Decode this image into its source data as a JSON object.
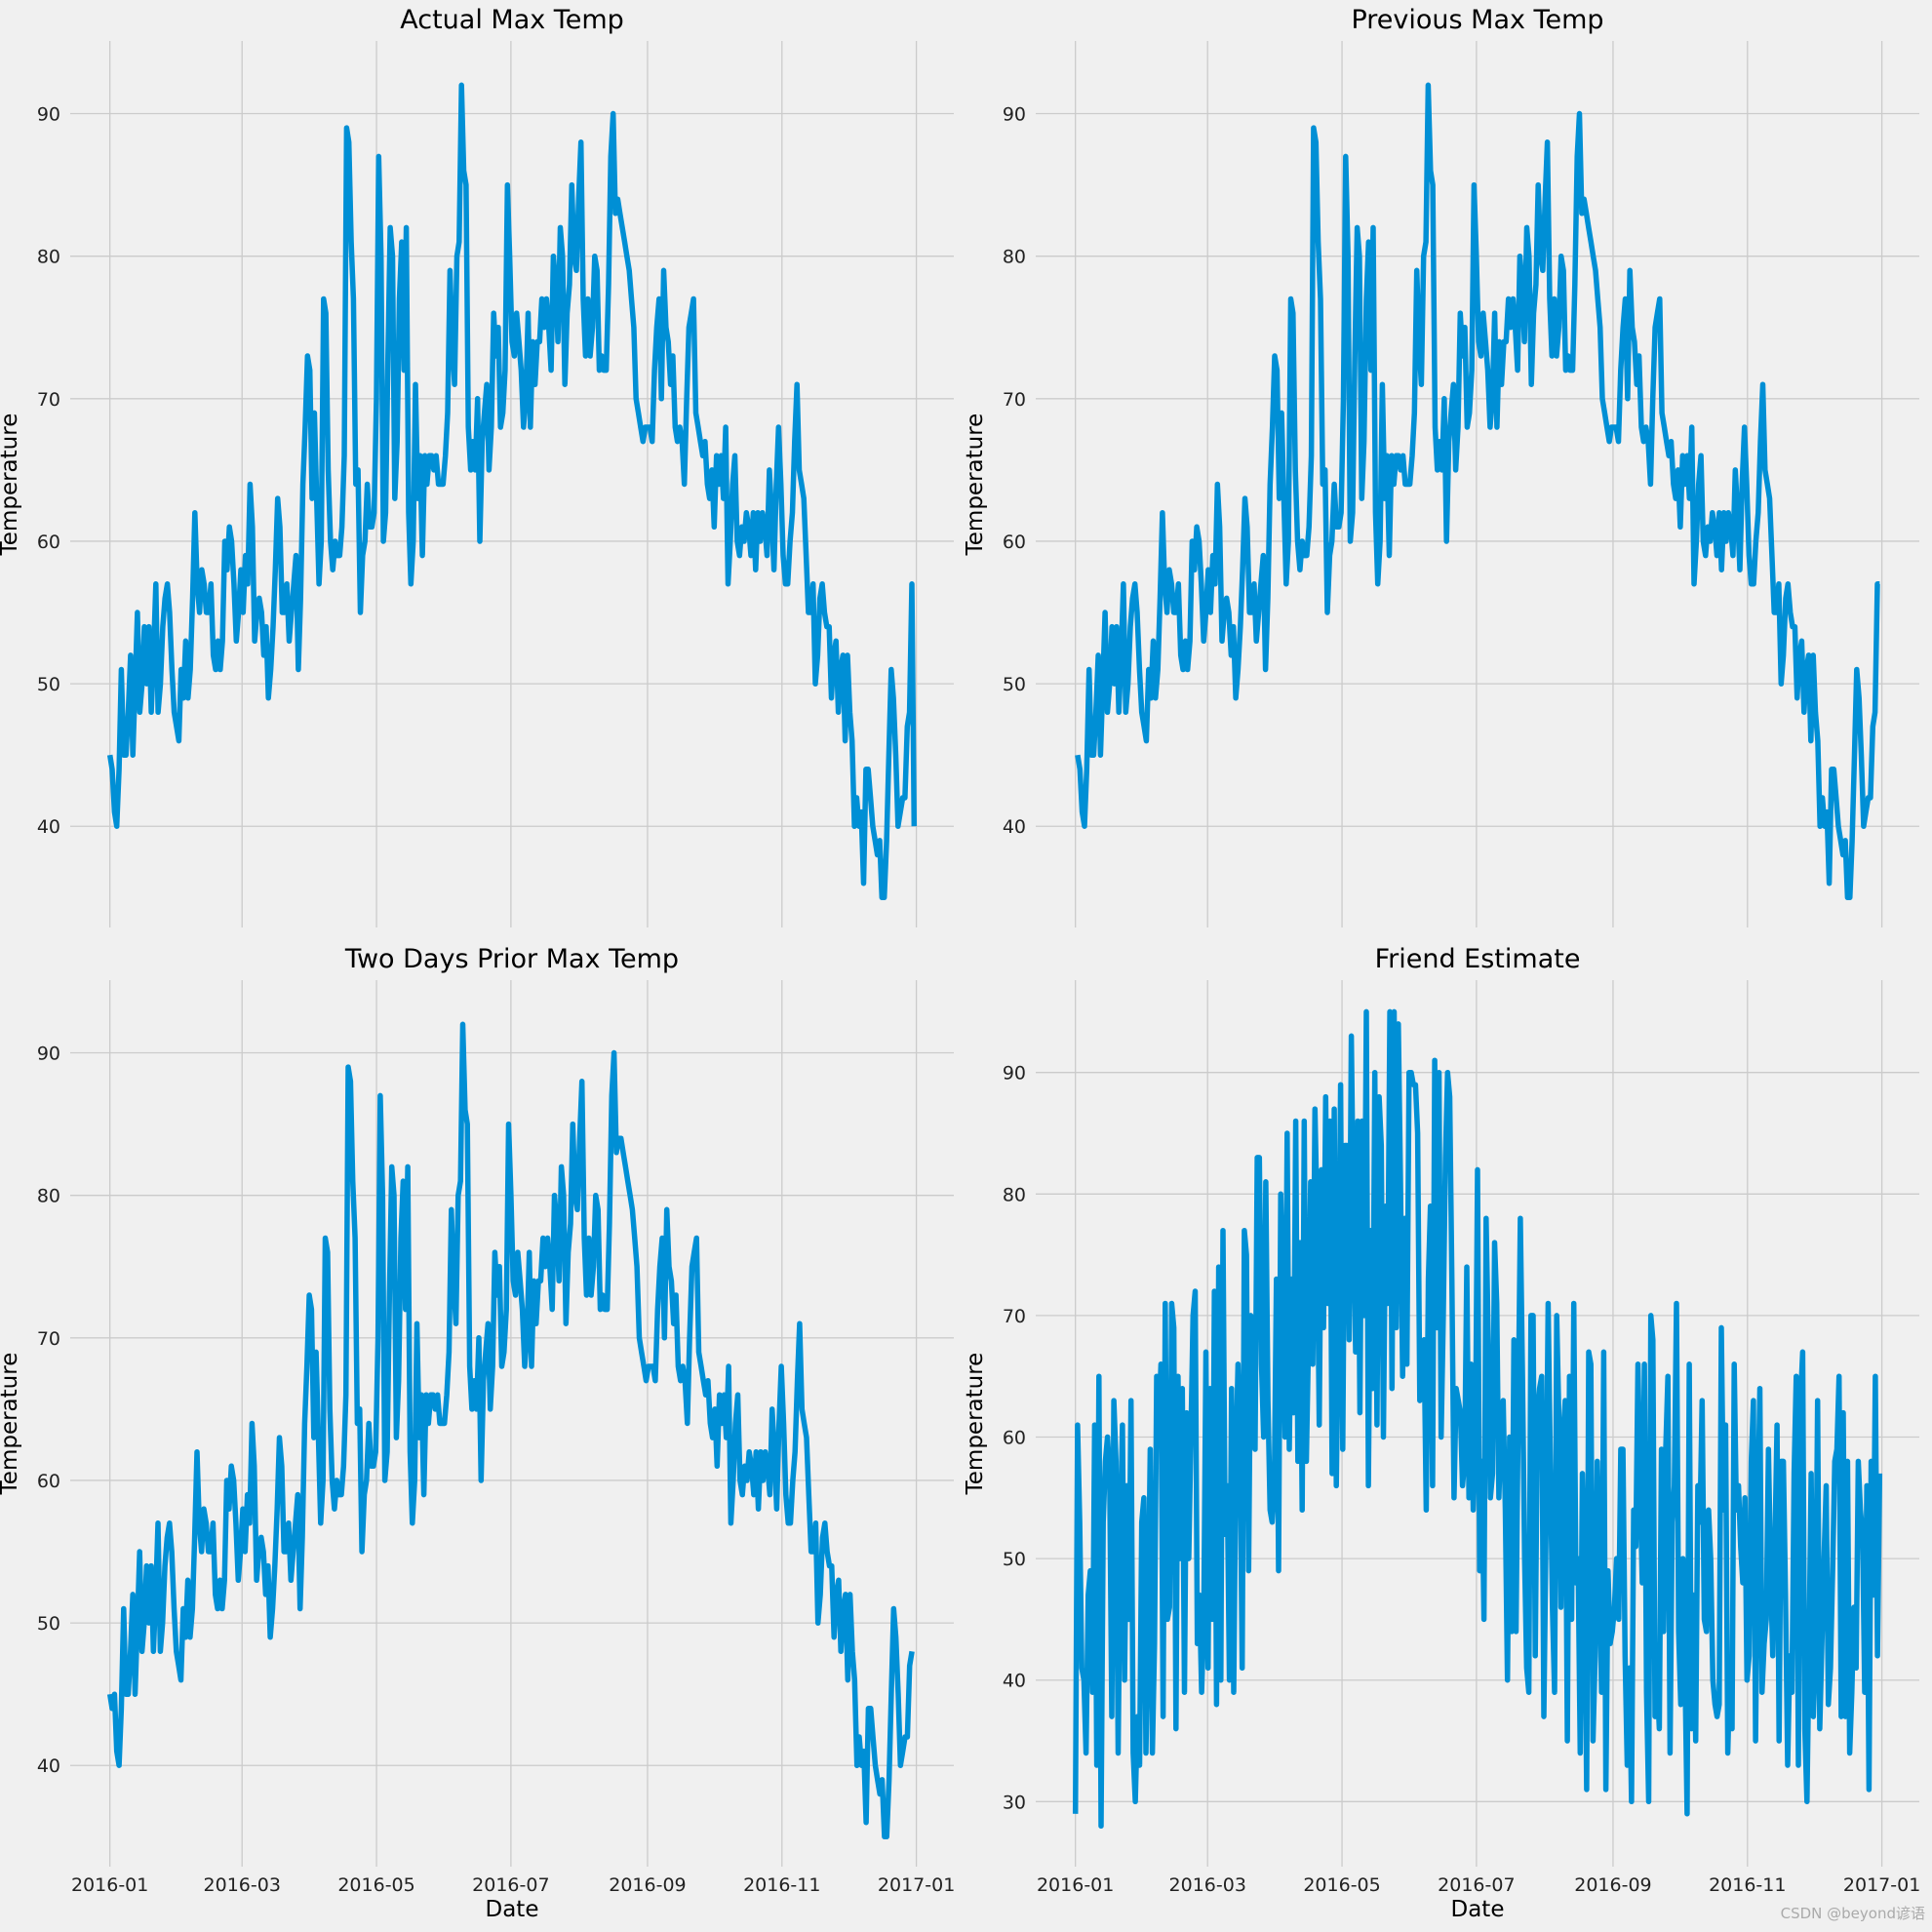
{
  "figure": {
    "background": "#f0f0f0",
    "grid_color": "#cbcbcb",
    "line_color": "#008fd5",
    "watermark": "CSDN @beyond谚语"
  },
  "chart_data": [
    {
      "type": "line",
      "title": "Actual Max Temp",
      "xlabel": "",
      "ylabel": "Temperature",
      "x_start": "2016-01-01",
      "x_end": "2016-12-31",
      "x_ticks": [
        "2016-01",
        "2016-03",
        "2016-05",
        "2016-07",
        "2016-09",
        "2016-11",
        "2017-01"
      ],
      "x_tick_labels_visible": false,
      "yticks": [
        40,
        50,
        60,
        70,
        80,
        90
      ],
      "ylim": [
        32.9,
        95.1
      ],
      "grid": true,
      "values": [
        45,
        44,
        41,
        40,
        44,
        51,
        45,
        45,
        48,
        52,
        45,
        50,
        55,
        48,
        50,
        54,
        50,
        54,
        48,
        52,
        57,
        48,
        50,
        54,
        56,
        57,
        55,
        51,
        48,
        47,
        46,
        51,
        49,
        53,
        49,
        51,
        56,
        62,
        57,
        55,
        58,
        57,
        55,
        55,
        57,
        52,
        51,
        53,
        51,
        53,
        60,
        58,
        61,
        60,
        57,
        53,
        55,
        58,
        55,
        59,
        57,
        64,
        61,
        53,
        55,
        56,
        55,
        52,
        54,
        49,
        51,
        54,
        58,
        63,
        61,
        55,
        55,
        57,
        53,
        55,
        57,
        59,
        51,
        56,
        64,
        68,
        73,
        72,
        63,
        69,
        63,
        57,
        60,
        77,
        76,
        65,
        60,
        58,
        60,
        59,
        59,
        61,
        66,
        89,
        88,
        81,
        77,
        64,
        65,
        55,
        59,
        60,
        64,
        61,
        61,
        62,
        70,
        87,
        80,
        60,
        62,
        73,
        82,
        80,
        63,
        67,
        77,
        81,
        72,
        82,
        62,
        57,
        60,
        71,
        63,
        66,
        59,
        66,
        64,
        66,
        66,
        65,
        66,
        64,
        64,
        64,
        66,
        69,
        79,
        74,
        71,
        80,
        81,
        92,
        86,
        85,
        68,
        65,
        67,
        65,
        70,
        60,
        67,
        69,
        71,
        65,
        68,
        76,
        73,
        75,
        68,
        69,
        72,
        85,
        80,
        74,
        73,
        76,
        74,
        72,
        68,
        70,
        76,
        68,
        74,
        71,
        74,
        74,
        77,
        75,
        77,
        75,
        72,
        80,
        78,
        74,
        82,
        80,
        71,
        76,
        78,
        85,
        80,
        79,
        84,
        88,
        77,
        73,
        77,
        73,
        75,
        80,
        79,
        72,
        73,
        72,
        72,
        78,
        87,
        90,
        83,
        84,
        83,
        82,
        81,
        80,
        79,
        77,
        75,
        70,
        69,
        68,
        67,
        68,
        68,
        68,
        67,
        72,
        75,
        77,
        70,
        79,
        75,
        74,
        71,
        73,
        68,
        67,
        68,
        67,
        64,
        70,
        75,
        76,
        77,
        69,
        68,
        67,
        66,
        67,
        64,
        63,
        65,
        61,
        66,
        64,
        66,
        63,
        68,
        57,
        60,
        64,
        66,
        60,
        59,
        61,
        60,
        62,
        61,
        59,
        62,
        58,
        62,
        60,
        62,
        61,
        59,
        65,
        62,
        58,
        64,
        68,
        64,
        59,
        57,
        57,
        60,
        62,
        67,
        71,
        65,
        64,
        63,
        59,
        55,
        55,
        57,
        50,
        52,
        56,
        57,
        55,
        54,
        54,
        49,
        52,
        53,
        48,
        51,
        52,
        46,
        52,
        48,
        46,
        40,
        42,
        40,
        41,
        36,
        44,
        44,
        42,
        40,
        39,
        38,
        39,
        35,
        35,
        39,
        45,
        51,
        49,
        45,
        40,
        41,
        42,
        42,
        47,
        48,
        57,
        40
      ]
    },
    {
      "type": "line",
      "title": "Previous Max Temp",
      "xlabel": "",
      "ylabel": "Temperature",
      "x_start": "2016-01-02",
      "x_end": "2016-12-31",
      "x_ticks": [
        "2016-01",
        "2016-03",
        "2016-05",
        "2016-07",
        "2016-09",
        "2016-11",
        "2017-01"
      ],
      "x_tick_labels_visible": false,
      "yticks": [
        40,
        50,
        60,
        70,
        80,
        90
      ],
      "ylim": [
        32.9,
        95.1
      ],
      "grid": true,
      "values": [
        45,
        44,
        41,
        40,
        44,
        51,
        45,
        45,
        48,
        52,
        45,
        50,
        55,
        48,
        50,
        54,
        50,
        54,
        48,
        52,
        57,
        48,
        50,
        54,
        56,
        57,
        55,
        51,
        48,
        47,
        46,
        51,
        49,
        53,
        49,
        51,
        56,
        62,
        57,
        55,
        58,
        57,
        55,
        55,
        57,
        52,
        51,
        53,
        51,
        53,
        60,
        58,
        61,
        60,
        57,
        53,
        55,
        58,
        55,
        59,
        57,
        64,
        61,
        53,
        55,
        56,
        55,
        52,
        54,
        49,
        51,
        54,
        58,
        63,
        61,
        55,
        55,
        57,
        53,
        55,
        57,
        59,
        51,
        56,
        64,
        68,
        73,
        72,
        63,
        69,
        63,
        57,
        60,
        77,
        76,
        65,
        60,
        58,
        60,
        59,
        59,
        61,
        66,
        89,
        88,
        81,
        77,
        64,
        65,
        55,
        59,
        60,
        64,
        61,
        61,
        62,
        70,
        87,
        80,
        60,
        62,
        73,
        82,
        80,
        63,
        67,
        77,
        81,
        72,
        82,
        62,
        57,
        60,
        71,
        63,
        66,
        59,
        66,
        64,
        66,
        66,
        65,
        66,
        64,
        64,
        64,
        66,
        69,
        79,
        74,
        71,
        80,
        81,
        92,
        86,
        85,
        68,
        65,
        67,
        65,
        70,
        60,
        67,
        69,
        71,
        65,
        68,
        76,
        73,
        75,
        68,
        69,
        72,
        85,
        80,
        74,
        73,
        76,
        74,
        72,
        68,
        70,
        76,
        68,
        74,
        71,
        74,
        74,
        77,
        75,
        77,
        75,
        72,
        80,
        78,
        74,
        82,
        80,
        71,
        76,
        78,
        85,
        80,
        79,
        84,
        88,
        77,
        73,
        77,
        73,
        75,
        80,
        79,
        72,
        73,
        72,
        72,
        78,
        87,
        90,
        83,
        84,
        83,
        82,
        81,
        80,
        79,
        77,
        75,
        70,
        69,
        68,
        67,
        68,
        68,
        68,
        67,
        72,
        75,
        77,
        70,
        79,
        75,
        74,
        71,
        73,
        68,
        67,
        68,
        67,
        64,
        70,
        75,
        76,
        77,
        69,
        68,
        67,
        66,
        67,
        64,
        63,
        65,
        61,
        66,
        64,
        66,
        63,
        68,
        57,
        60,
        64,
        66,
        60,
        59,
        61,
        60,
        62,
        61,
        59,
        62,
        58,
        62,
        60,
        62,
        61,
        59,
        65,
        62,
        58,
        64,
        68,
        64,
        59,
        57,
        57,
        60,
        62,
        67,
        71,
        65,
        64,
        63,
        59,
        55,
        55,
        57,
        50,
        52,
        56,
        57,
        55,
        54,
        54,
        49,
        52,
        53,
        48,
        51,
        52,
        46,
        52,
        48,
        46,
        40,
        42,
        40,
        41,
        36,
        44,
        44,
        42,
        40,
        39,
        38,
        39,
        35,
        35,
        39,
        45,
        51,
        49,
        45,
        40,
        41,
        42,
        42,
        47,
        48,
        57,
        57
      ]
    },
    {
      "type": "line",
      "title": "Two Days Prior Max Temp",
      "xlabel": "Date",
      "ylabel": "Temperature",
      "x_start": "2016-01-01",
      "x_end": "2016-12-30",
      "x_ticks": [
        "2016-01",
        "2016-03",
        "2016-05",
        "2016-07",
        "2016-09",
        "2016-11",
        "2017-01"
      ],
      "x_tick_labels_visible": true,
      "yticks": [
        40,
        50,
        60,
        70,
        80,
        90
      ],
      "ylim": [
        32.9,
        95.1
      ],
      "grid": true,
      "values": [
        45,
        44,
        45,
        41,
        40,
        44,
        51,
        45,
        45,
        48,
        52,
        45,
        50,
        55,
        48,
        50,
        54,
        50,
        54,
        48,
        52,
        57,
        48,
        50,
        54,
        56,
        57,
        55,
        51,
        48,
        47,
        46,
        51,
        49,
        53,
        49,
        51,
        56,
        62,
        57,
        55,
        58,
        57,
        55,
        55,
        57,
        52,
        51,
        53,
        51,
        53,
        60,
        58,
        61,
        60,
        57,
        53,
        55,
        58,
        55,
        59,
        57,
        64,
        61,
        53,
        55,
        56,
        55,
        52,
        54,
        49,
        51,
        54,
        58,
        63,
        61,
        55,
        55,
        57,
        53,
        55,
        57,
        59,
        51,
        56,
        64,
        68,
        73,
        72,
        63,
        69,
        63,
        57,
        60,
        77,
        76,
        65,
        60,
        58,
        60,
        59,
        59,
        61,
        66,
        89,
        88,
        81,
        77,
        64,
        65,
        55,
        59,
        60,
        64,
        61,
        61,
        62,
        70,
        87,
        80,
        60,
        62,
        73,
        82,
        80,
        63,
        67,
        77,
        81,
        72,
        82,
        62,
        57,
        60,
        71,
        63,
        66,
        59,
        66,
        64,
        66,
        66,
        65,
        66,
        64,
        64,
        64,
        66,
        69,
        79,
        74,
        71,
        80,
        81,
        92,
        86,
        85,
        68,
        65,
        67,
        65,
        70,
        60,
        67,
        69,
        71,
        65,
        68,
        76,
        73,
        75,
        68,
        69,
        72,
        85,
        80,
        74,
        73,
        76,
        74,
        72,
        68,
        70,
        76,
        68,
        74,
        71,
        74,
        74,
        77,
        75,
        77,
        75,
        72,
        80,
        78,
        74,
        82,
        80,
        71,
        76,
        78,
        85,
        80,
        79,
        84,
        88,
        77,
        73,
        77,
        73,
        75,
        80,
        79,
        72,
        73,
        72,
        72,
        78,
        87,
        90,
        83,
        84,
        84,
        83,
        82,
        81,
        80,
        79,
        77,
        75,
        70,
        69,
        68,
        67,
        68,
        68,
        68,
        67,
        72,
        75,
        77,
        70,
        79,
        75,
        74,
        71,
        73,
        68,
        67,
        68,
        67,
        64,
        70,
        75,
        76,
        77,
        69,
        68,
        67,
        66,
        67,
        64,
        63,
        65,
        61,
        66,
        64,
        66,
        63,
        68,
        57,
        60,
        64,
        66,
        60,
        59,
        61,
        60,
        62,
        61,
        59,
        62,
        58,
        62,
        60,
        62,
        61,
        59,
        65,
        62,
        58,
        64,
        68,
        64,
        59,
        57,
        57,
        60,
        62,
        67,
        71,
        65,
        64,
        63,
        59,
        55,
        55,
        57,
        50,
        52,
        56,
        57,
        55,
        54,
        54,
        49,
        52,
        53,
        48,
        51,
        52,
        46,
        52,
        48,
        46,
        40,
        42,
        40,
        41,
        36,
        44,
        44,
        42,
        40,
        39,
        38,
        39,
        35,
        35,
        39,
        45,
        51,
        49,
        45,
        40,
        41,
        42,
        42,
        47,
        48
      ]
    },
    {
      "type": "line",
      "title": "Friend Estimate",
      "xlabel": "Date",
      "ylabel": "Temperature",
      "x_start": "2016-01-01",
      "x_end": "2016-12-31",
      "x_ticks": [
        "2016-01",
        "2016-03",
        "2016-05",
        "2016-07",
        "2016-09",
        "2016-11",
        "2017-01"
      ],
      "x_tick_labels_visible": true,
      "yticks": [
        30,
        40,
        50,
        60,
        70,
        80,
        90
      ],
      "ylim": [
        24.65,
        97.6
      ],
      "grid": true,
      "values": [
        29,
        61,
        53,
        41,
        40,
        34,
        47,
        49,
        39,
        61,
        33,
        65,
        28,
        53,
        58,
        60,
        57,
        37,
        63,
        58,
        34,
        52,
        61,
        40,
        56,
        45,
        63,
        34,
        30,
        37,
        33,
        53,
        55,
        34,
        45,
        59,
        34,
        43,
        65,
        61,
        66,
        37,
        71,
        45,
        46,
        71,
        69,
        36,
        65,
        50,
        64,
        39,
        62,
        50,
        60,
        70,
        72,
        43,
        47,
        39,
        45,
        67,
        41,
        64,
        45,
        72,
        38,
        74,
        40,
        77,
        52,
        56,
        40,
        64,
        39,
        58,
        66,
        59,
        41,
        77,
        75,
        49,
        70,
        60,
        59,
        83,
        83,
        66,
        60,
        81,
        63,
        54,
        53,
        56,
        73,
        49,
        80,
        72,
        60,
        85,
        59,
        73,
        62,
        86,
        58,
        76,
        54,
        86,
        58,
        68,
        81,
        66,
        87,
        78,
        61,
        82,
        69,
        88,
        71,
        86,
        57,
        87,
        56,
        70,
        89,
        59,
        84,
        84,
        68,
        93,
        78,
        67,
        86,
        62,
        86,
        70,
        95,
        56,
        77,
        64,
        90,
        61,
        88,
        84,
        60,
        79,
        71,
        95,
        64,
        95,
        69,
        94,
        81,
        65,
        78,
        66,
        90,
        90,
        89,
        89,
        85,
        63,
        65,
        68,
        54,
        73,
        79,
        56,
        91,
        69,
        90,
        60,
        70,
        83,
        90,
        88,
        73,
        55,
        64,
        63,
        62,
        56,
        58,
        74,
        55,
        66,
        54,
        59,
        82,
        49,
        58,
        45,
        78,
        68,
        55,
        57,
        76,
        71,
        55,
        61,
        63,
        54,
        40,
        60,
        44,
        68,
        44,
        62,
        78,
        65,
        50,
        41,
        39,
        70,
        70,
        42,
        62,
        64,
        65,
        37,
        52,
        71,
        58,
        46,
        39,
        70,
        62,
        46,
        60,
        63,
        35,
        65,
        45,
        71,
        48,
        50,
        34,
        57,
        49,
        31,
        67,
        66,
        35,
        42,
        58,
        48,
        39,
        67,
        31,
        49,
        43,
        44,
        46,
        50,
        45,
        59,
        59,
        42,
        33,
        41,
        30,
        54,
        51,
        66,
        56,
        48,
        66,
        39,
        30,
        70,
        68,
        37,
        40,
        36,
        59,
        44,
        59,
        65,
        34,
        53,
        56,
        71,
        44,
        38,
        50,
        41,
        29,
        66,
        36,
        47,
        35,
        56,
        53,
        63,
        45,
        44,
        54,
        50,
        40,
        38,
        37,
        38,
        69,
        54,
        61,
        34,
        41,
        36,
        66,
        54,
        56,
        51,
        48,
        55,
        40,
        42,
        58,
        63,
        35,
        53,
        64,
        39,
        43,
        45,
        59,
        49,
        42,
        51,
        61,
        35,
        58,
        58,
        47,
        33,
        42,
        39,
        57,
        65,
        33,
        63,
        67,
        36,
        30,
        43,
        57,
        37,
        42,
        63,
        36,
        43,
        50,
        56,
        38,
        41,
        49,
        58,
        59,
        65,
        37,
        62,
        37,
        58,
        34,
        39,
        46,
        41,
        58,
        54,
        52,
        39,
        56,
        31,
        58,
        47,
        65,
        42,
        57
      ]
    }
  ]
}
